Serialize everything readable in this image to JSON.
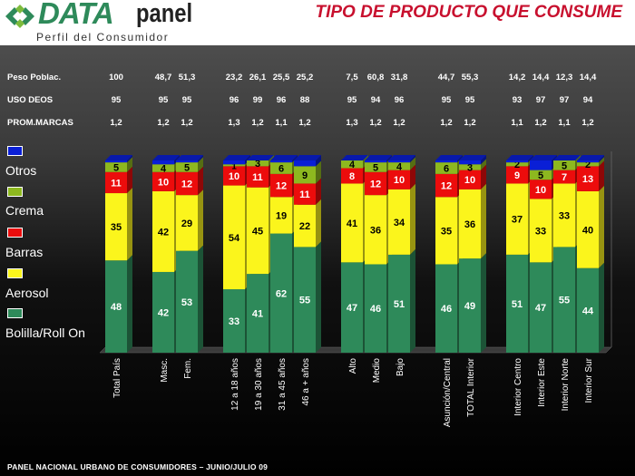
{
  "header": {
    "logo_data": "DATA",
    "logo_panel": "panel",
    "logo_subtitle": "Perfil del Consumidor",
    "title": "TIPO DE PRODUCTO QUE CONSUME"
  },
  "stats": {
    "labels": [
      "Peso Poblac.",
      "USO DEOS",
      "PROM.MARCAS"
    ],
    "peso": [
      "100",
      "48,7",
      "51,3",
      "23,2",
      "26,1",
      "25,5",
      "25,2",
      "7,5",
      "60,8",
      "31,8",
      "44,7",
      "55,3",
      "14,2",
      "14,4",
      "12,3",
      "14,4"
    ],
    "uso": [
      "95",
      "95",
      "95",
      "96",
      "99",
      "96",
      "88",
      "95",
      "94",
      "96",
      "95",
      "95",
      "93",
      "97",
      "97",
      "94"
    ],
    "prom": [
      "1,2",
      "1,2",
      "1,2",
      "1,3",
      "1,2",
      "1,1",
      "1,2",
      "1,3",
      "1,2",
      "1,2",
      "1,2",
      "1,2",
      "1,1",
      "1,2",
      "1,1",
      "1,2"
    ]
  },
  "legend": [
    {
      "label": "Otros",
      "color": "#0a1fd6"
    },
    {
      "label": "Crema",
      "color": "#8db81f"
    },
    {
      "label": "Barras",
      "color": "#ec0c0c"
    },
    {
      "label": "Aerosol",
      "color": "#fbf51c"
    },
    {
      "label": "Bolilla/Roll On",
      "color": "#2e8a5a"
    }
  ],
  "chart_data": {
    "type": "bar",
    "stacked": true,
    "categories": [
      "Total País",
      "Masc.",
      "Fem.",
      "12 a 18 años",
      "19 a 30 años",
      "31 a 45 años",
      "46 a + años",
      "Alto",
      "Medio",
      "Bajo",
      "Asunción/Central",
      "TOTAL Interior",
      "Interior Centro",
      "Interior Este",
      "Interior Norte",
      "Interior Sur"
    ],
    "groups": [
      [
        0
      ],
      [
        1,
        2
      ],
      [
        3,
        4,
        5,
        6
      ],
      [
        7,
        8,
        9
      ],
      [
        10,
        11
      ],
      [
        12,
        13,
        14,
        15
      ]
    ],
    "series": [
      {
        "name": "Bolilla/Roll On",
        "color": "#2e8a5a",
        "values": [
          48,
          42,
          53,
          33,
          41,
          62,
          55,
          47,
          46,
          51,
          46,
          49,
          51,
          47,
          55,
          44
        ]
      },
      {
        "name": "Aerosol",
        "color": "#fbf51c",
        "values": [
          35,
          42,
          29,
          54,
          45,
          19,
          22,
          41,
          36,
          34,
          35,
          36,
          37,
          33,
          33,
          40
        ]
      },
      {
        "name": "Barras",
        "color": "#ec0c0c",
        "values": [
          11,
          10,
          12,
          10,
          11,
          12,
          11,
          8,
          12,
          10,
          12,
          10,
          9,
          10,
          7,
          13
        ]
      },
      {
        "name": "Crema",
        "color": "#8db81f",
        "values": [
          5,
          4,
          5,
          1,
          3,
          6,
          9,
          4,
          5,
          4,
          6,
          3,
          2,
          5,
          5,
          2
        ]
      },
      {
        "name": "Otros",
        "color": "#0a1fd6",
        "values": [
          1,
          2,
          1,
          2,
          0,
          1,
          3,
          0,
          1,
          1,
          1,
          2,
          1,
          5,
          0,
          1
        ]
      }
    ],
    "ylim": [
      0,
      100
    ]
  },
  "footer": "PANEL NACIONAL URBANO  DE CONSUMIDORES – JUNIO/JULIO 09"
}
